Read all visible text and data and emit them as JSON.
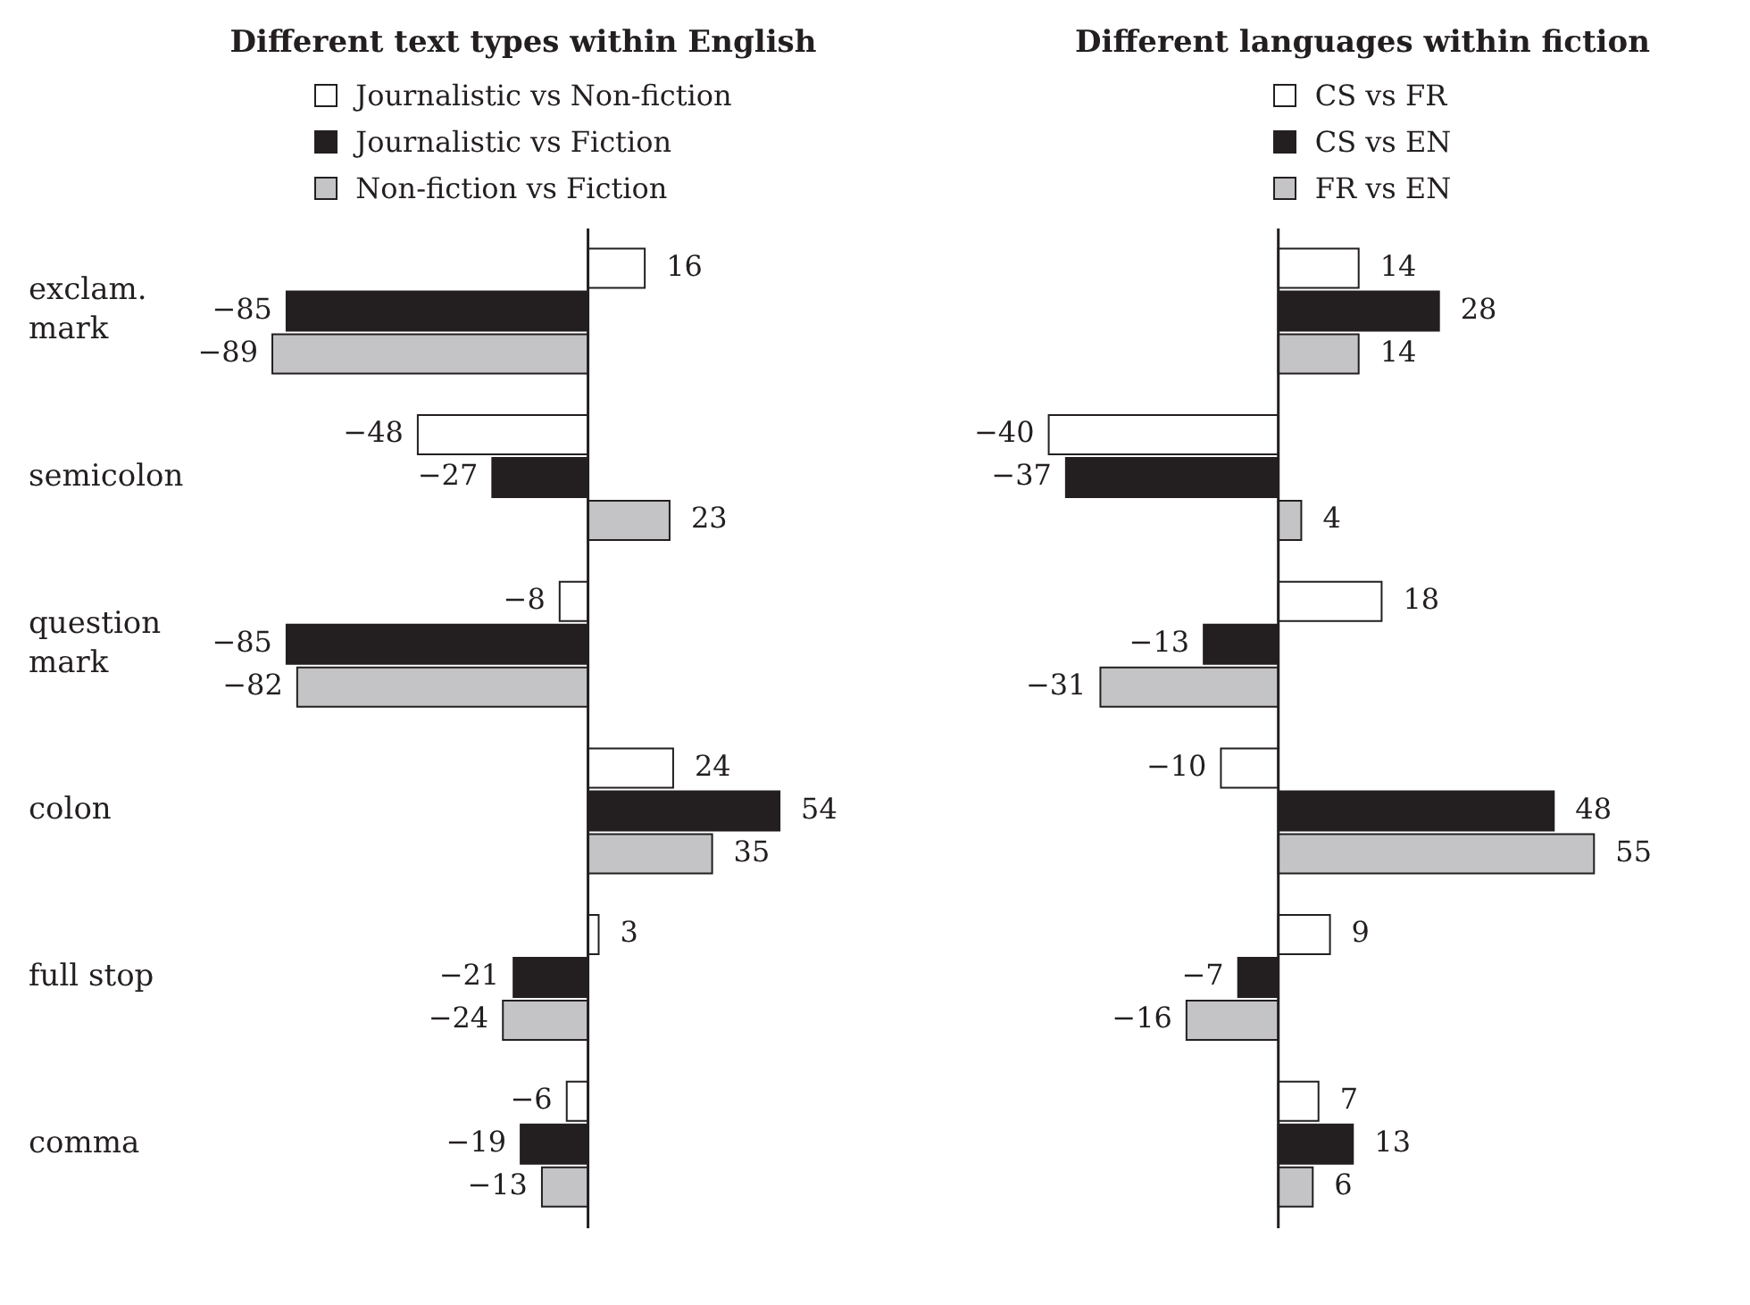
{
  "chart_data": [
    {
      "type": "bar",
      "orientation": "horizontal",
      "title": "Different text types within English",
      "categories": [
        "exclam. mark",
        "semicolon",
        "question mark",
        "colon",
        "full stop",
        "comma"
      ],
      "series": [
        {
          "name": "Journalistic vs Non-fiction",
          "color": "#ffffff",
          "values": [
            16,
            -48,
            -8,
            24,
            3,
            -6
          ]
        },
        {
          "name": "Journalistic vs Fiction",
          "color": "#231f20",
          "values": [
            -85,
            -27,
            -85,
            54,
            -21,
            -19
          ]
        },
        {
          "name": "Non-fiction vs Fiction",
          "color": "#c4c4c6",
          "values": [
            -89,
            23,
            -82,
            35,
            -24,
            -13
          ]
        }
      ],
      "data_labels": true,
      "legend": "top",
      "tick_labels": "y"
    },
    {
      "type": "bar",
      "orientation": "horizontal",
      "title": "Different languages within fiction",
      "categories": [
        null,
        null,
        null,
        null,
        null,
        null
      ],
      "series": [
        {
          "name": "CS vs FR",
          "color": "#ffffff",
          "values": [
            14,
            -40,
            18,
            -10,
            9,
            7
          ]
        },
        {
          "name": "CS vs EN",
          "color": "#231f20",
          "values": [
            28,
            -37,
            -13,
            48,
            -7,
            13
          ]
        },
        {
          "name": "FR vs EN",
          "color": "#c4c4c6",
          "values": [
            14,
            4,
            -31,
            55,
            -16,
            6
          ]
        }
      ],
      "data_labels": true,
      "legend": "top",
      "tick_labels": false
    }
  ]
}
